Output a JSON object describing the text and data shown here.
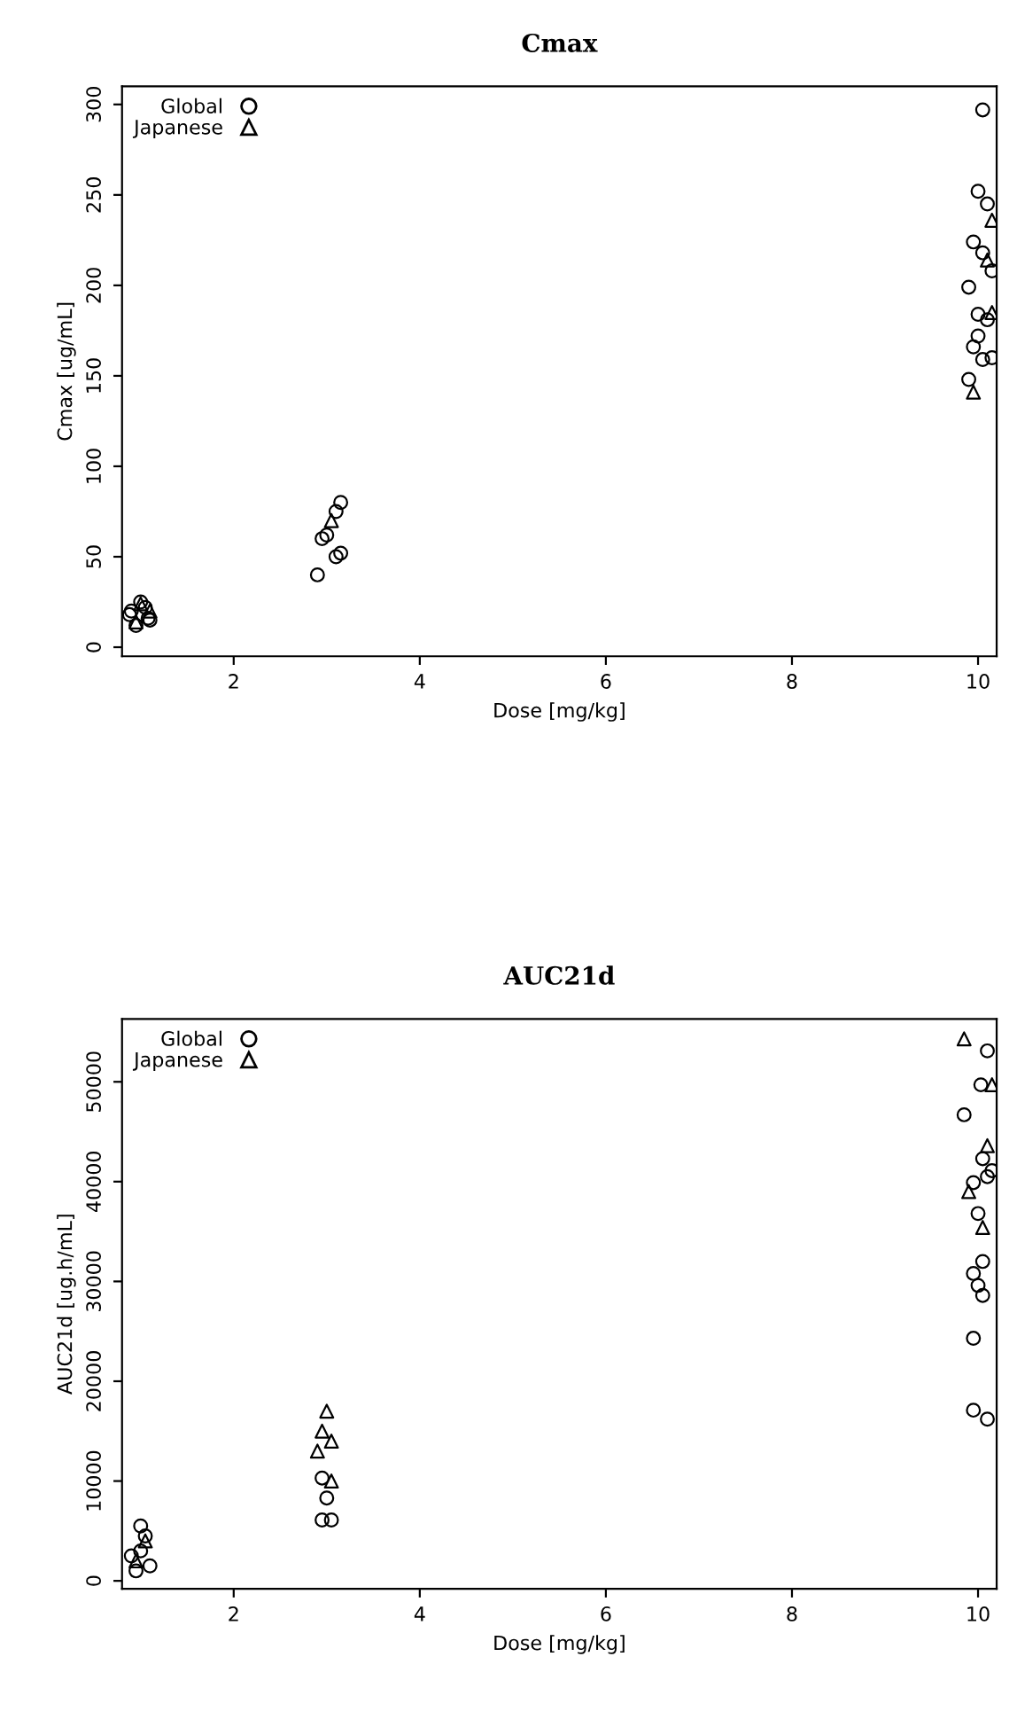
{
  "chart_data": [
    {
      "type": "scatter",
      "title": "Cmax",
      "xlabel": "Dose [mg/kg]",
      "ylabel": "Cmax [ug/mL]",
      "xlim": [
        0.8,
        10.2
      ],
      "xticks": [
        2,
        4,
        6,
        8,
        10
      ],
      "ylim": [
        -5,
        310
      ],
      "yticks": [
        0,
        50,
        100,
        150,
        200,
        250,
        300
      ],
      "grid": false,
      "legend": "top left",
      "series": [
        {
          "name": "Global",
          "color": "#000000",
          "marker": "circle",
          "x": [
            0.95,
            0.88,
            1.05,
            1.1,
            0.9,
            1.0,
            1.08,
            2.9,
            2.95,
            3.0,
            3.1,
            3.15,
            3.1,
            3.15,
            10.05,
            10.0,
            10.1,
            9.95,
            10.05,
            10.15,
            9.9,
            10.0,
            10.1,
            9.95,
            10.05,
            9.9,
            10.15,
            10.0
          ],
          "values": [
            12,
            18,
            22,
            15,
            20,
            25,
            16,
            40,
            60,
            62,
            75,
            80,
            50,
            52,
            297,
            252,
            245,
            224,
            218,
            208,
            199,
            184,
            181,
            166,
            159,
            148,
            160,
            172
          ]
        },
        {
          "name": "Japanese",
          "color": "#000000",
          "marker": "triangle",
          "x": [
            1.0,
            1.1,
            0.95,
            3.05,
            10.15,
            10.1,
            9.95,
            10.15
          ],
          "values": [
            24,
            20,
            14,
            70,
            236,
            214,
            141,
            185
          ]
        }
      ]
    },
    {
      "type": "scatter",
      "title": "AUC21d",
      "xlabel": "Dose [mg/kg]",
      "ylabel": "AUC21d [ug.h/mL]",
      "xlim": [
        0.8,
        10.2
      ],
      "xticks": [
        2,
        4,
        6,
        8,
        10
      ],
      "ylim": [
        -800,
        56300
      ],
      "yticks": [
        0,
        10000,
        20000,
        30000,
        40000,
        50000
      ],
      "grid": false,
      "legend": "top left",
      "series": [
        {
          "name": "Global",
          "color": "#000000",
          "marker": "circle",
          "x": [
            0.95,
            1.0,
            1.05,
            0.9,
            1.0,
            1.1,
            2.95,
            3.0,
            2.95,
            3.05,
            10.1,
            10.03,
            9.85,
            10.05,
            10.15,
            9.95,
            10.0,
            10.05,
            9.95,
            10.0,
            10.05,
            9.95,
            10.1,
            9.95,
            10.1
          ],
          "values": [
            1000,
            3000,
            4500,
            2500,
            5500,
            1500,
            10300,
            8300,
            6100,
            6100,
            53100,
            49700,
            46700,
            42300,
            41100,
            39900,
            36800,
            32000,
            30800,
            29600,
            28600,
            24300,
            40500,
            17100,
            16200
          ]
        },
        {
          "name": "Japanese",
          "color": "#000000",
          "marker": "triangle",
          "x": [
            1.05,
            0.95,
            3.05,
            3.0,
            2.95,
            3.05,
            2.9,
            9.85,
            10.15,
            10.1,
            9.9,
            10.05
          ],
          "values": [
            4000,
            2000,
            10000,
            17000,
            15000,
            14000,
            13000,
            54300,
            49700,
            43600,
            39000,
            35400
          ]
        }
      ]
    }
  ]
}
